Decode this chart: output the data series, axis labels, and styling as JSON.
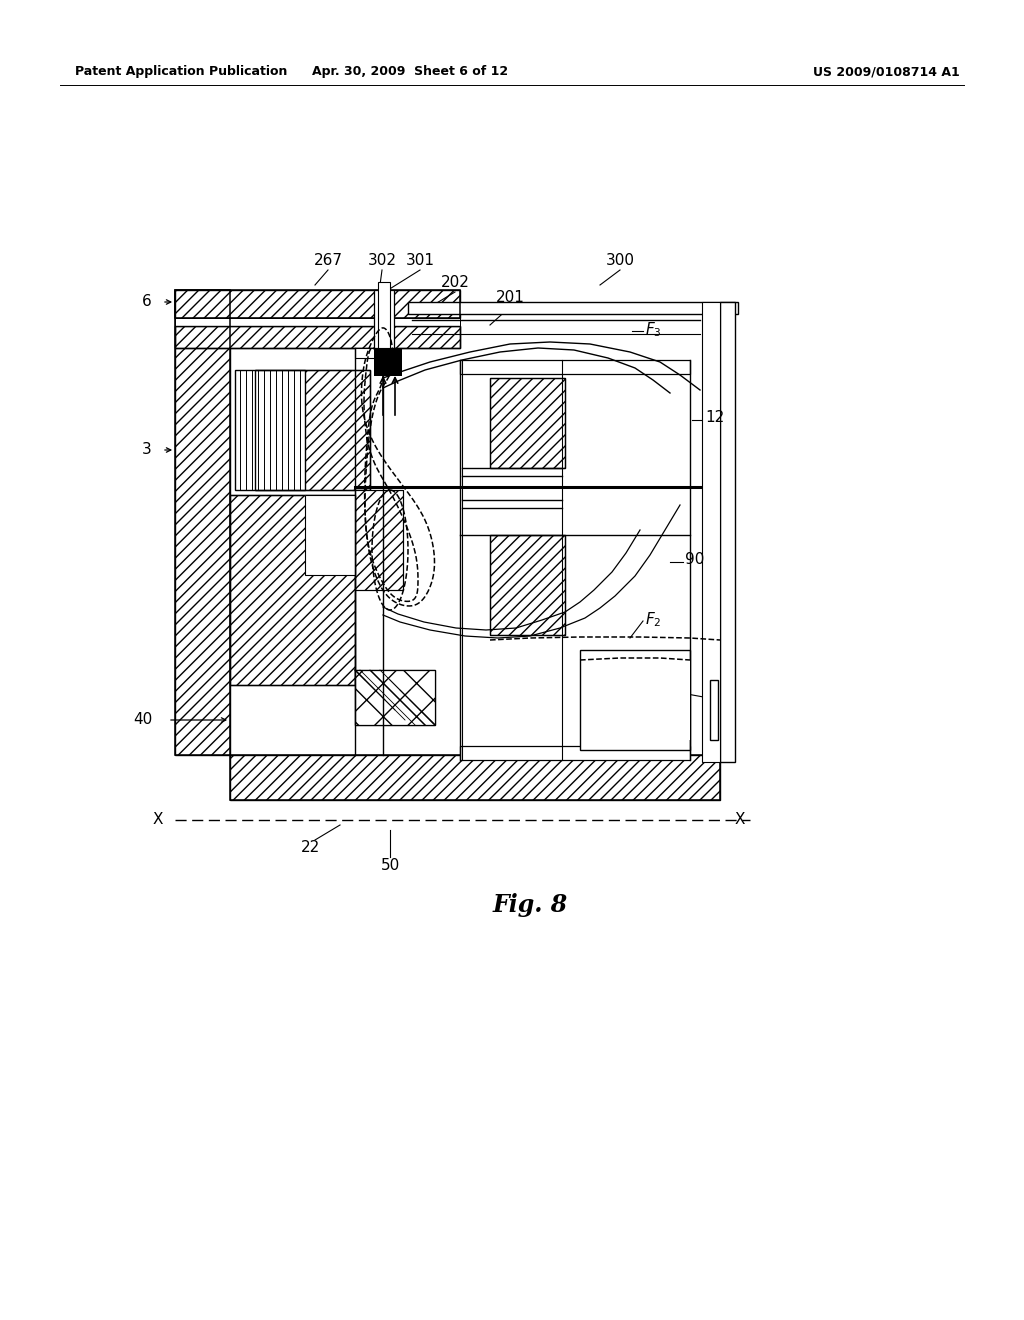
{
  "bg_color": "#ffffff",
  "header_left": "Patent Application Publication",
  "header_mid": "Apr. 30, 2009  Sheet 6 of 12",
  "header_right": "US 2009/0108714 A1",
  "fig_label": "Fig. 8"
}
